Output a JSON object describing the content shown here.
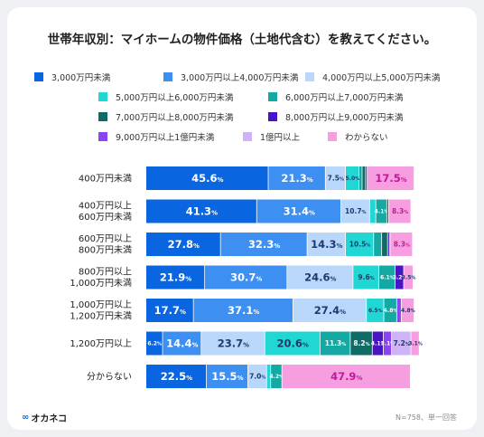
{
  "chart_data": {
    "type": "bar",
    "orientation": "horizontal",
    "stacked": true,
    "title": "世帯年収別：マイホームの物件価格（土地代含む）を教えてください。",
    "unit_suffix": "%",
    "categories": [
      "400万円未満",
      "400万円以上\n600万円未満",
      "600万円以上\n800万円未満",
      "800万円以上\n1,000万円未満",
      "1,000万円以上\n1,200万円未満",
      "1,200万円以上",
      "分からない"
    ],
    "series": [
      {
        "name": "3,000万円未満",
        "color": "#0a66e0",
        "values": [
          45.6,
          41.3,
          27.8,
          21.9,
          17.7,
          6.2,
          22.5
        ]
      },
      {
        "name": "3,000万円以上4,000万円未満",
        "color": "#3d8ff2",
        "values": [
          21.3,
          31.4,
          32.3,
          30.7,
          37.1,
          14.4,
          15.5
        ]
      },
      {
        "name": "4,000万円以上5,000万円未満",
        "color": "#b9d6fb",
        "values": [
          7.5,
          10.7,
          14.3,
          24.6,
          27.4,
          23.7,
          7.0
        ]
      },
      {
        "name": "5,000万円以上6,000万円未満",
        "color": "#20d7d4",
        "values": [
          5.0,
          2.3,
          10.5,
          9.6,
          6.5,
          20.6,
          1.5
        ]
      },
      {
        "name": "6,000万円以上7,000万円未満",
        "color": "#14aaa3",
        "values": [
          1.2,
          4.1,
          3.0,
          6.1,
          4.8,
          11.3,
          4.2
        ]
      },
      {
        "name": "7,000万円以上8,000万円未満",
        "color": "#0e6b66",
        "values": [
          1.3,
          0.7,
          2.2,
          0.0,
          0.0,
          8.2,
          0.0
        ]
      },
      {
        "name": "8,000万円以上9,000万円未満",
        "color": "#4a13c4",
        "values": [
          0.6,
          0.0,
          0.7,
          3.2,
          0.0,
          4.1,
          0.0
        ]
      },
      {
        "name": "9,000万円以上1億円未満",
        "color": "#8a45ee",
        "values": [
          0.0,
          0.0,
          0.3,
          0.0,
          1.7,
          3.1,
          0.0
        ]
      },
      {
        "name": "1億円以上",
        "color": "#cfb3f7",
        "values": [
          0.0,
          0.0,
          0.0,
          0.0,
          0.0,
          7.2,
          0.0
        ]
      },
      {
        "name": "わからない",
        "color": "#f79ee0",
        "values": [
          17.5,
          8.3,
          8.3,
          3.5,
          4.8,
          3.1,
          47.9
        ]
      }
    ],
    "xlim": [
      0,
      100
    ],
    "legend_position": "top"
  },
  "brand": {
    "logo_mark": "∞",
    "name": "オカネコ"
  },
  "footnote": "N=758、単一回答"
}
